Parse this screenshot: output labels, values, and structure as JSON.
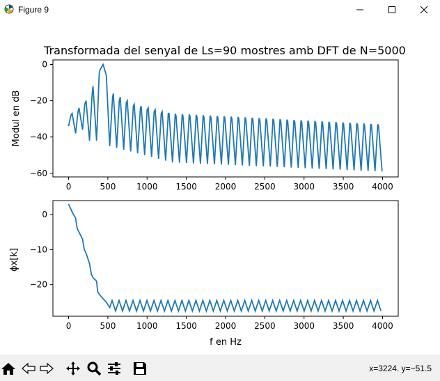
{
  "window": {
    "title": "Figure 9",
    "icon": "matplotlib-icon",
    "controls": [
      "minimize-icon",
      "maximize-icon",
      "close-icon"
    ]
  },
  "toolbar": {
    "buttons": [
      "home-icon",
      "back-arrow-icon",
      "forward-arrow-icon",
      "pan-move-icon",
      "zoom-magnifier-icon",
      "configure-subplots-icon",
      "save-floppy-icon"
    ],
    "coordinates": "x=3224. y=−51.5"
  },
  "chart_data": [
    {
      "type": "line",
      "title": "Transformada del senyal de Ls=90 mostres amb DFT de N=5000",
      "xlabel": "",
      "ylabel": "Modul en dB",
      "xlim": [
        -200,
        4200
      ],
      "ylim": [
        -62,
        2.5
      ],
      "xticks": [
        0,
        500,
        1000,
        1500,
        2000,
        2500,
        3000,
        3500,
        4000
      ],
      "xtick_labels": [
        "0",
        "500",
        "1000",
        "1500",
        "2000",
        "2500",
        "3000",
        "3500",
        "4000"
      ],
      "yticks": [
        0,
        -20,
        -40,
        -60
      ],
      "ytick_labels": [
        "0",
        "−20",
        "−40",
        "−60"
      ],
      "grid": false,
      "color": "#1f77b4",
      "description_of_series": "sinc-like spectrum, main lobe peak 0 dB at ~440 Hz, nulls every ~89 Hz",
      "series": [
        {
          "x": [
            0,
            30,
            45,
            89,
            120,
            133,
            178,
            205,
            222,
            267,
            300,
            311,
            356,
            390,
            400,
            440,
            480,
            524,
            560,
            570,
            613,
            645,
            658,
            702,
            735,
            747,
            791,
            825,
            836,
            880,
            915,
            925,
            969,
            1000,
            1014,
            1058,
            1090,
            1103,
            1147,
            1180,
            1192,
            1236,
            1270,
            1280,
            1324,
            1500,
            1750,
            2000,
            2250,
            2500,
            2750,
            3000,
            3250,
            3500,
            3750,
            4000
          ],
          "y": [
            -34,
            -28,
            -27,
            -38,
            -26,
            -24,
            -36,
            -22,
            -20,
            -42,
            -16,
            -12,
            -42,
            -5,
            -3,
            0,
            -6,
            -45,
            -18,
            -16,
            -46,
            -20,
            -18,
            -47,
            -21,
            -20,
            -48,
            -23,
            -22,
            -49,
            -24,
            -23,
            -50,
            -25,
            -24,
            -51,
            -26,
            -25,
            -52,
            -27,
            -26,
            -53,
            -27,
            -27,
            -54,
            -28,
            -29,
            -30,
            -30,
            -31,
            -31,
            -32,
            -33,
            -33,
            -34,
            -59
          ]
        }
      ]
    },
    {
      "type": "line",
      "title": "",
      "xlabel": "f en Hz",
      "ylabel": "ϕx[k]",
      "xlim": [
        -200,
        4200
      ],
      "ylim": [
        -29,
        4
      ],
      "xticks": [
        0,
        500,
        1000,
        1500,
        2000,
        2500,
        3000,
        3500,
        4000
      ],
      "xtick_labels": [
        "0",
        "500",
        "1000",
        "1500",
        "2000",
        "2500",
        "3000",
        "3500",
        "4000"
      ],
      "yticks": [
        0,
        -10,
        -20
      ],
      "ytick_labels": [
        "0",
        "−10",
        "−20"
      ],
      "grid": false,
      "color": "#1f77b4",
      "series": [
        {
          "x": [
            0,
            50,
            89,
            110,
            178,
            200,
            222,
            267,
            290,
            311,
            356,
            370,
            400,
            440,
            480,
            524
          ],
          "y": [
            3,
            0.5,
            -1,
            -4,
            -7,
            -10,
            -11,
            -14,
            -17,
            -18,
            -19,
            -22,
            -23,
            -24,
            -25,
            -26.5
          ]
        }
      ],
      "sawtooth": {
        "start_x": 524,
        "end_x": 4000,
        "period_hz": 89,
        "low": -27.5,
        "high": -24.5
      }
    }
  ]
}
